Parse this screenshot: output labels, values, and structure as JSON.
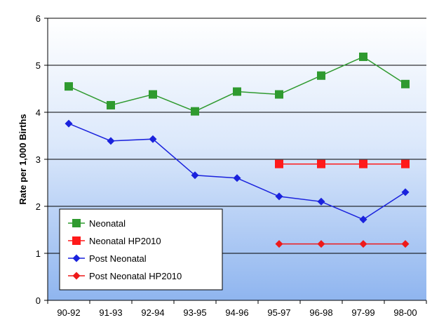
{
  "chart_data": {
    "type": "line",
    "title": "",
    "xlabel": "",
    "ylabel": "Rate per 1,000 Births",
    "ylim": [
      0,
      6
    ],
    "yticks": [
      0,
      1,
      2,
      3,
      4,
      5,
      6
    ],
    "grid": true,
    "legend_position": "bottom-left",
    "categories": [
      "90-92",
      "91-93",
      "92-94",
      "93-95",
      "94-96",
      "95-97",
      "96-98",
      "97-99",
      "98-00"
    ],
    "series": [
      {
        "name": "Neonatal",
        "color": "#2f9a2f",
        "marker": "square",
        "values": [
          4.55,
          4.15,
          4.38,
          4.02,
          4.44,
          4.38,
          4.78,
          5.18,
          4.6
        ]
      },
      {
        "name": "Neonatal HP2010",
        "color": "#ff1a1a",
        "marker": "square",
        "values": [
          null,
          null,
          null,
          null,
          null,
          2.9,
          2.9,
          2.9,
          2.9
        ]
      },
      {
        "name": "Post Neonatal",
        "color": "#1a22dd",
        "marker": "diamond",
        "values": [
          3.76,
          3.39,
          3.43,
          2.66,
          2.6,
          2.21,
          2.1,
          1.72,
          2.3
        ]
      },
      {
        "name": "Post Neonatal HP2010",
        "color": "#ee1a1a",
        "marker": "diamond",
        "values": [
          null,
          null,
          null,
          null,
          null,
          1.2,
          1.2,
          1.2,
          1.2
        ]
      }
    ]
  }
}
